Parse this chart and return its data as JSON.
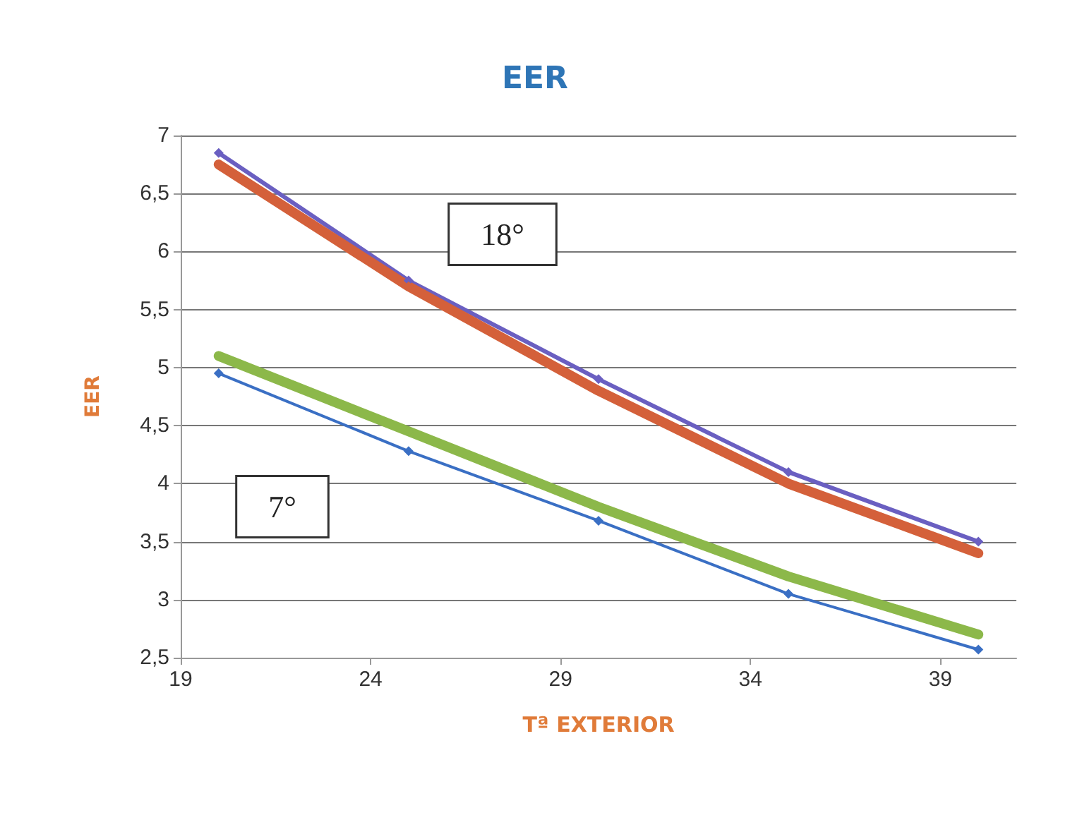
{
  "chart_data": {
    "type": "line",
    "title": "EER",
    "xlabel": "Tª EXTERIOR",
    "ylabel": "EER",
    "x": [
      20,
      25,
      30,
      35,
      40
    ],
    "series": [
      {
        "color": "#6a5fc1",
        "values": [
          6.85,
          5.75,
          4.9,
          4.1,
          3.5
        ]
      },
      {
        "color": "#d4603a",
        "values": [
          6.75,
          5.7,
          4.8,
          4.0,
          3.4
        ]
      },
      {
        "color": "#8cb84a",
        "values": [
          5.1,
          4.45,
          3.8,
          3.2,
          2.7
        ]
      },
      {
        "color": "#3a6fc4",
        "values": [
          4.95,
          4.28,
          3.68,
          3.05,
          2.57
        ]
      }
    ],
    "xlim": [
      19,
      41
    ],
    "xticks": [
      19,
      24,
      29,
      34,
      39
    ],
    "ylim": [
      2.5,
      7
    ],
    "yticks": [
      {
        "value": 2.5,
        "label": "2,5"
      },
      3,
      {
        "value": 3.5,
        "label": "3,5"
      },
      4,
      {
        "value": 4.5,
        "label": "4,5"
      },
      5,
      {
        "value": 5.5,
        "label": "5,5"
      },
      6,
      {
        "value": 6.5,
        "label": "6,5"
      },
      7
    ],
    "annotations": [
      "18°",
      "7°"
    ],
    "grid": "y",
    "marker": "diamond",
    "line_style": "solid"
  }
}
